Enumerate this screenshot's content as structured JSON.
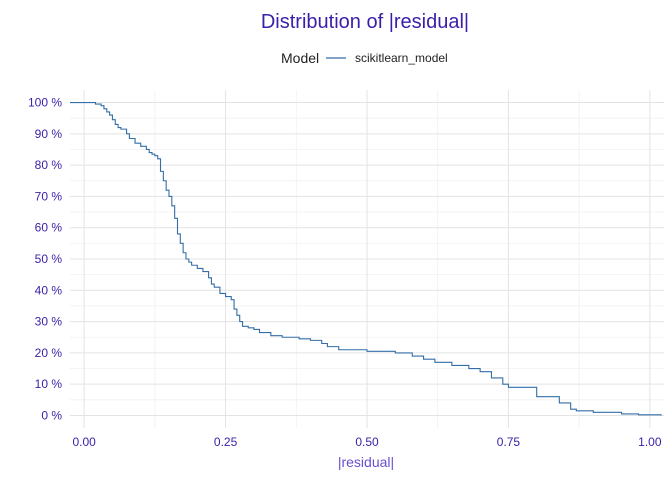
{
  "chart_data": {
    "type": "line",
    "title": "Distribution of |residual|",
    "xlabel": "|residual|",
    "ylabel": "",
    "xlim": [
      -0.025,
      1.025
    ],
    "ylim": [
      -0.04,
      1.04
    ],
    "x_ticks": [
      0.0,
      0.25,
      0.5,
      0.75,
      1.0
    ],
    "x_tick_labels": [
      "0.00",
      "0.25",
      "0.50",
      "0.75",
      "1.00"
    ],
    "y_ticks": [
      0,
      0.1,
      0.2,
      0.3,
      0.4,
      0.5,
      0.6,
      0.7,
      0.8,
      0.9,
      1.0
    ],
    "y_tick_labels": [
      "0 %",
      "10 %",
      "20 %",
      "30 %",
      "40 %",
      "50 %",
      "60 %",
      "70 %",
      "80 %",
      "90 %",
      "100 %"
    ],
    "grid": true,
    "legend": {
      "title": "Model",
      "position": "top"
    },
    "colors": {
      "title": "#3b1fa8",
      "ticks": "#3b1fa8",
      "axis_title": "#6a4fd0",
      "series": "#336ea8"
    },
    "series": [
      {
        "name": "scikitlearn_model",
        "step": true,
        "x": [
          0.0,
          0.02,
          0.03,
          0.035,
          0.04,
          0.045,
          0.05,
          0.055,
          0.06,
          0.065,
          0.075,
          0.08,
          0.09,
          0.1,
          0.11,
          0.115,
          0.12,
          0.125,
          0.13,
          0.135,
          0.14,
          0.145,
          0.15,
          0.155,
          0.16,
          0.165,
          0.17,
          0.175,
          0.18,
          0.185,
          0.19,
          0.2,
          0.21,
          0.22,
          0.225,
          0.23,
          0.24,
          0.25,
          0.26,
          0.265,
          0.27,
          0.275,
          0.28,
          0.29,
          0.3,
          0.31,
          0.33,
          0.35,
          0.38,
          0.4,
          0.42,
          0.43,
          0.45,
          0.5,
          0.55,
          0.58,
          0.6,
          0.62,
          0.65,
          0.68,
          0.7,
          0.72,
          0.74,
          0.75,
          0.8,
          0.84,
          0.86,
          0.87,
          0.9,
          0.95,
          0.98,
          1.02
        ],
        "y": [
          1.0,
          0.995,
          0.99,
          0.98,
          0.97,
          0.96,
          0.945,
          0.93,
          0.92,
          0.915,
          0.9,
          0.885,
          0.87,
          0.86,
          0.85,
          0.84,
          0.835,
          0.83,
          0.82,
          0.78,
          0.75,
          0.72,
          0.7,
          0.67,
          0.63,
          0.58,
          0.55,
          0.52,
          0.5,
          0.49,
          0.48,
          0.47,
          0.46,
          0.44,
          0.42,
          0.41,
          0.39,
          0.38,
          0.37,
          0.34,
          0.32,
          0.3,
          0.285,
          0.28,
          0.275,
          0.265,
          0.255,
          0.25,
          0.245,
          0.24,
          0.23,
          0.22,
          0.21,
          0.205,
          0.2,
          0.19,
          0.18,
          0.17,
          0.16,
          0.15,
          0.14,
          0.12,
          0.1,
          0.09,
          0.06,
          0.04,
          0.02,
          0.015,
          0.01,
          0.005,
          0.002,
          0.0
        ]
      }
    ]
  }
}
